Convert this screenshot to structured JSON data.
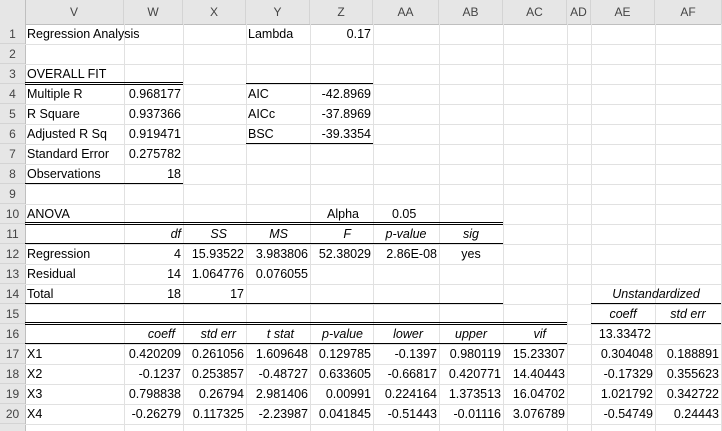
{
  "columns": [
    "V",
    "W",
    "X",
    "Y",
    "Z",
    "AA",
    "AB",
    "AC",
    "AD",
    "AE",
    "AF"
  ],
  "rows": [
    "1",
    "2",
    "3",
    "4",
    "5",
    "6",
    "7",
    "8",
    "9",
    "10",
    "11",
    "12",
    "13",
    "14",
    "15",
    "16",
    "17",
    "18",
    "19",
    "20"
  ],
  "r1": {
    "title": "Regression Analysis",
    "lambda_label": "Lambda",
    "lambda_value": "0.17"
  },
  "r3": {
    "overall_fit": "OVERALL FIT"
  },
  "fit": {
    "multiple_r": {
      "label": "Multiple R",
      "value": "0.968177"
    },
    "r_square": {
      "label": "R Square",
      "value": "0.937366"
    },
    "adj_r_sq": {
      "label": "Adjusted R Sq",
      "value": "0.919471"
    },
    "std_error": {
      "label": "Standard Error",
      "value": "0.275782"
    },
    "observations": {
      "label": "Observations",
      "value": "18"
    }
  },
  "info": {
    "aic": {
      "label": "AIC",
      "value": "-42.8969"
    },
    "aicc": {
      "label": "AICc",
      "value": "-37.8969"
    },
    "bsc": {
      "label": "BSC",
      "value": "-39.3354"
    }
  },
  "anova": {
    "label": "ANOVA",
    "alpha_label": "Alpha",
    "alpha_value": "0.05",
    "headers": [
      "df",
      "SS",
      "MS",
      "F",
      "p-value",
      "sig"
    ],
    "regression": {
      "label": "Regression",
      "df": "4",
      "ss": "15.93522",
      "ms": "3.983806",
      "f": "52.38029",
      "p": "2.86E-08",
      "sig": "yes"
    },
    "residual": {
      "label": "Residual",
      "df": "14",
      "ss": "1.064776",
      "ms": "0.076055"
    },
    "total": {
      "label": "Total",
      "df": "18",
      "ss": "17"
    }
  },
  "coef": {
    "headers": [
      "coeff",
      "std err",
      "t stat",
      "p-value",
      "lower",
      "upper",
      "vif"
    ],
    "unstd_label": "Unstandardized",
    "unstd_headers": [
      "coeff",
      "std err"
    ],
    "intercept_unstd": "13.33472",
    "rows": [
      {
        "name": "X1",
        "coeff": "0.420209",
        "se": "0.261056",
        "t": "1.609648",
        "p": "0.129785",
        "lower": "-0.1397",
        "upper": "0.980119",
        "vif": "15.23307",
        "ucoeff": "0.304048",
        "use": "0.188891"
      },
      {
        "name": "X2",
        "coeff": "-0.1237",
        "se": "0.253857",
        "t": "-0.48727",
        "p": "0.633605",
        "lower": "-0.66817",
        "upper": "0.420771",
        "vif": "14.40443",
        "ucoeff": "-0.17329",
        "use": "0.355623"
      },
      {
        "name": "X3",
        "coeff": "0.798838",
        "se": "0.26794",
        "t": "2.981406",
        "p": "0.00991",
        "lower": "0.224164",
        "upper": "1.373513",
        "vif": "16.04702",
        "ucoeff": "1.021792",
        "use": "0.342722"
      },
      {
        "name": "X4",
        "coeff": "-0.26279",
        "se": "0.117325",
        "t": "-2.23987",
        "p": "0.041845",
        "lower": "-0.51443",
        "upper": "-0.01116",
        "vif": "3.076789",
        "ucoeff": "-0.54749",
        "use": "0.24443"
      }
    ]
  }
}
